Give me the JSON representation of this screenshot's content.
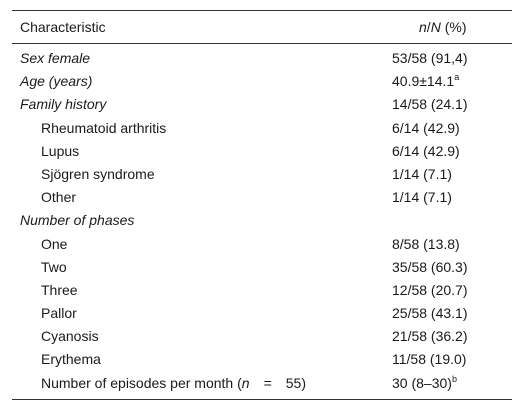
{
  "header": {
    "characteristic": "Characteristic",
    "n_label": "n",
    "slash": "/",
    "N_label": "N",
    "pct": " (%)"
  },
  "rows": [
    {
      "label": "Sex female",
      "value": "53/58 (91,4)"
    },
    {
      "label": "Age (years)",
      "value": "40.9±14.1",
      "sup": "a"
    },
    {
      "label": "Family history",
      "value": "14/58 (24.1)"
    },
    {
      "label": "Rheumatoid arthritis",
      "value": "6/14 (42.9)"
    },
    {
      "label": "Lupus",
      "value": "6/14 (42.9)"
    },
    {
      "label": "Sjögren syndrome",
      "value": "1/14 (7.1)"
    },
    {
      "label": "Other",
      "value": "1/14 (7.1)"
    },
    {
      "label": "Number of phases",
      "value": ""
    },
    {
      "label": "One",
      "value": "8/58 (13.8)"
    },
    {
      "label": "Two",
      "value": "35/58 (60.3)"
    },
    {
      "label": "Three",
      "value": "12/58 (20.7)"
    },
    {
      "label": "Pallor",
      "value": "25/58 (43.1)"
    },
    {
      "label": "Cyanosis",
      "value": "21/58 (36.2)"
    },
    {
      "label": "Erythema",
      "value": "11/58 (19.0)"
    },
    {
      "label_prefix": "Number of episodes per month (",
      "label_n": "n",
      "label_eq": "=",
      "label_num": "55)",
      "value": "30 (8–30)",
      "sup": "b"
    }
  ]
}
